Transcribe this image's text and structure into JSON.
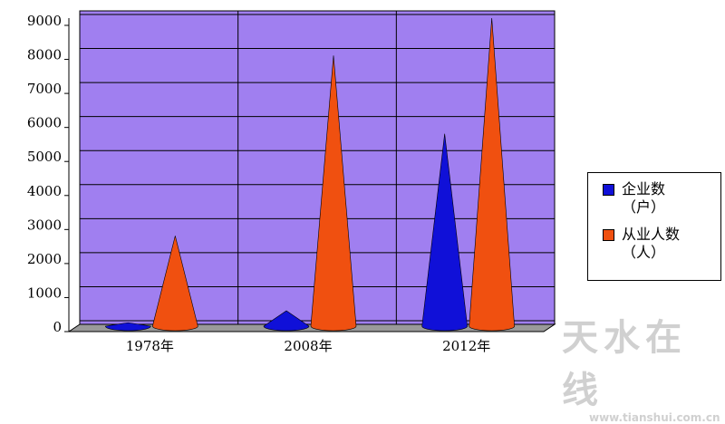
{
  "chart_data": {
    "type": "cone",
    "categories": [
      "1978年",
      "2008年",
      "2012年"
    ],
    "series": [
      {
        "name": "企业数（户）",
        "color": "#1010d8",
        "values": [
          50,
          400,
          5600
        ]
      },
      {
        "name": "从业人数（人）",
        "color": "#f05010",
        "values": [
          2600,
          7900,
          9000
        ]
      }
    ],
    "ylim": [
      0,
      9000
    ],
    "yticks": [
      0,
      1000,
      2000,
      3000,
      4000,
      5000,
      6000,
      7000,
      8000,
      9000
    ],
    "grid": true,
    "legend": "right",
    "background": "#a07ff0"
  },
  "watermark": {
    "title": "天水在线",
    "url": "www.tianshui.com.cn"
  }
}
